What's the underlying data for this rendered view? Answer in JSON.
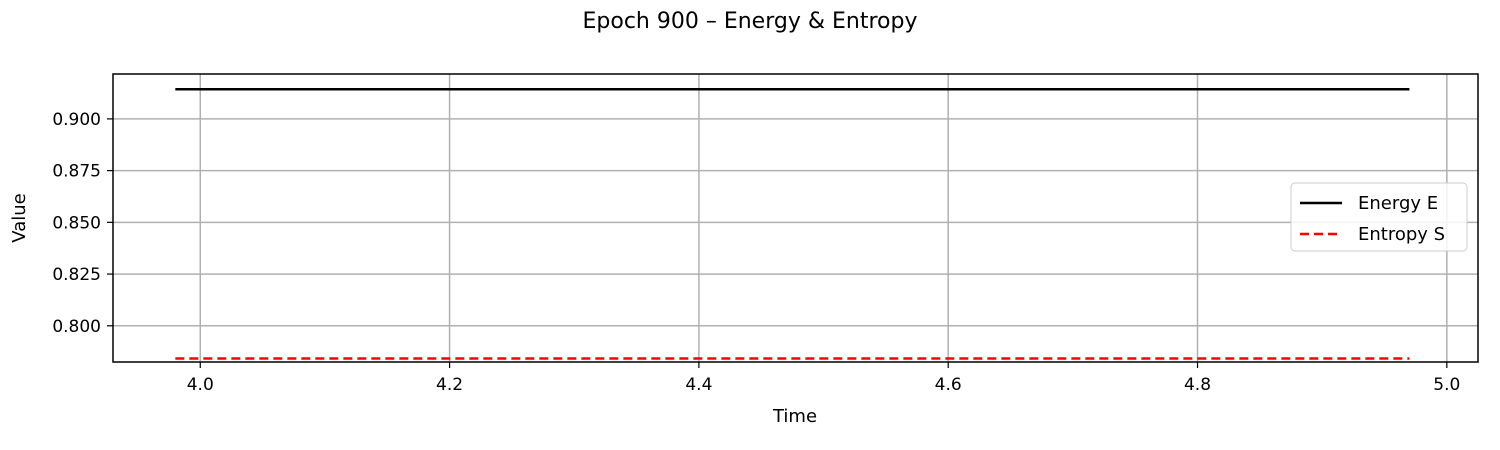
{
  "chart_data": {
    "type": "line",
    "title": "Epoch 900 – Energy & Entropy",
    "xlabel": "Time",
    "ylabel": "Value",
    "xlim": [
      3.93,
      5.025
    ],
    "ylim": [
      0.7825,
      0.9217
    ],
    "x_ticks": [
      4.0,
      4.2,
      4.4,
      4.6,
      4.8,
      5.0
    ],
    "x_tick_labels": [
      "4.0",
      "4.2",
      "4.4",
      "4.6",
      "4.8",
      "5.0"
    ],
    "y_ticks": [
      0.8,
      0.825,
      0.85,
      0.875,
      0.9
    ],
    "y_tick_labels": [
      "0.800",
      "0.825",
      "0.850",
      "0.875",
      "0.900"
    ],
    "grid": true,
    "legend_position": "center-right",
    "series": [
      {
        "name": "Energy E",
        "color": "#000000",
        "style": "solid",
        "x": [
          3.98,
          4.97
        ],
        "y": [
          0.9143,
          0.9143
        ]
      },
      {
        "name": "Entropy S",
        "color": "#ff0000",
        "style": "dashed",
        "x": [
          3.98,
          4.97
        ],
        "y": [
          0.7842,
          0.7842
        ]
      }
    ]
  }
}
